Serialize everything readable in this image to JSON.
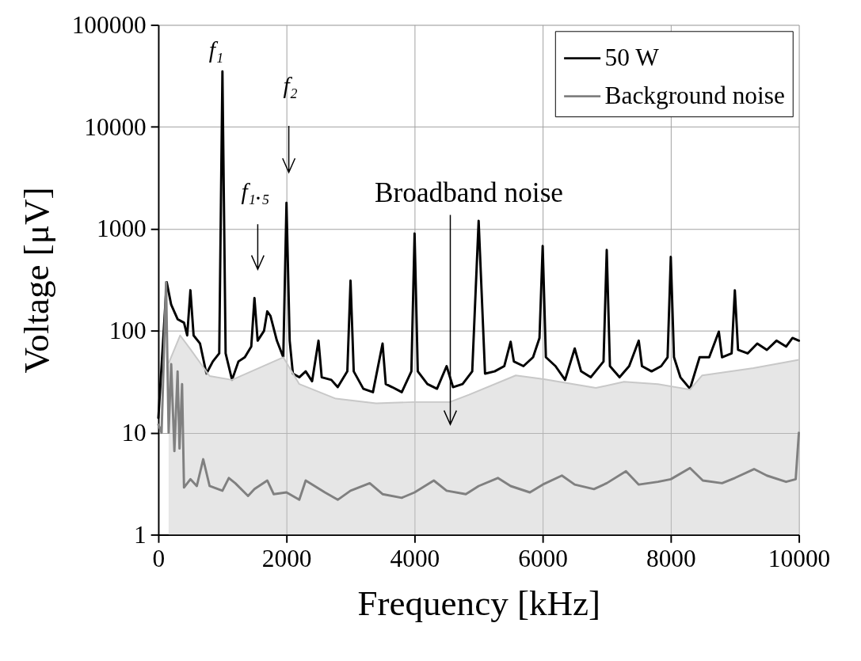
{
  "chart_data": {
    "type": "line",
    "xlabel": "Frequency [kHz]",
    "ylabel": "Voltage [μV]",
    "xlim": [
      0,
      10000
    ],
    "xticks": [
      0,
      2000,
      4000,
      6000,
      8000,
      10000
    ],
    "ylim": [
      1,
      100000
    ],
    "yticks": [
      1,
      10,
      100,
      1000,
      10000,
      100000
    ],
    "log": "y",
    "grid": true,
    "legend": "top right",
    "series": [
      {
        "name": "50 W",
        "color": "#000000",
        "x": [
          0,
          130,
          200,
          300,
          400,
          450,
          500,
          550,
          650,
          750,
          850,
          950,
          1000,
          1050,
          1150,
          1250,
          1350,
          1450,
          1500,
          1550,
          1650,
          1700,
          1750,
          1850,
          1950,
          2000,
          2050,
          2100,
          2200,
          2300,
          2400,
          2500,
          2550,
          2700,
          2800,
          2950,
          3000,
          3050,
          3200,
          3350,
          3500,
          3550,
          3650,
          3800,
          3950,
          4000,
          4050,
          4200,
          4350,
          4500,
          4600,
          4750,
          4900,
          5000,
          5100,
          5250,
          5400,
          5500,
          5550,
          5700,
          5850,
          5950,
          6000,
          6050,
          6200,
          6350,
          6500,
          6600,
          6750,
          6950,
          7000,
          7050,
          7200,
          7350,
          7500,
          7550,
          7700,
          7850,
          7950,
          8000,
          8050,
          8150,
          8300,
          8450,
          8600,
          8750,
          8800,
          8950,
          9000,
          9050,
          9200,
          9350,
          9500,
          9650,
          9800,
          9900,
          10000
        ],
        "values": [
          14,
          300,
          180,
          130,
          120,
          90,
          250,
          90,
          75,
          38,
          50,
          60,
          35000,
          60,
          33,
          50,
          55,
          70,
          210,
          80,
          100,
          155,
          140,
          80,
          55,
          1800,
          80,
          38,
          35,
          40,
          32,
          80,
          35,
          33,
          28,
          40,
          310,
          40,
          27,
          25,
          75,
          30,
          28,
          25,
          40,
          900,
          40,
          30,
          27,
          45,
          28,
          30,
          40,
          1200,
          38,
          40,
          45,
          78,
          50,
          45,
          55,
          85,
          680,
          55,
          45,
          33,
          67,
          40,
          35,
          50,
          620,
          45,
          35,
          45,
          80,
          45,
          40,
          45,
          55,
          530,
          55,
          35,
          27,
          55,
          55,
          98,
          55,
          60,
          250,
          65,
          60,
          75,
          65,
          80,
          70,
          85,
          80
        ]
      },
      {
        "name": "Background noise",
        "color": "#808080",
        "x": [
          0,
          50,
          120,
          160,
          200,
          250,
          300,
          330,
          370,
          400,
          500,
          600,
          700,
          800,
          1000,
          1100,
          1200,
          1400,
          1500,
          1700,
          1800,
          2000,
          2200,
          2300,
          2600,
          2800,
          3000,
          3300,
          3500,
          3800,
          4000,
          4300,
          4500,
          4800,
          5000,
          5300,
          5500,
          5800,
          6000,
          6300,
          6500,
          6800,
          7000,
          7300,
          7500,
          7800,
          8000,
          8300,
          8500,
          8800,
          9000,
          9300,
          9500,
          9800,
          9950,
          10000
        ],
        "values": [
          12,
          10,
          300,
          10,
          47,
          6.6,
          40,
          7,
          30,
          2.9,
          3.5,
          3,
          5.5,
          3,
          2.7,
          3.6,
          3.2,
          2.4,
          2.8,
          3.4,
          2.5,
          2.6,
          2.2,
          3.4,
          2.6,
          2.2,
          2.7,
          3.2,
          2.5,
          2.3,
          2.6,
          3.4,
          2.7,
          2.5,
          3,
          3.6,
          3,
          2.6,
          3.1,
          3.8,
          3.1,
          2.8,
          3.2,
          4.2,
          3.1,
          3.3,
          3.5,
          4.5,
          3.4,
          3.2,
          3.6,
          4.4,
          3.8,
          3.3,
          3.5,
          10
        ],
        "type": "line"
      },
      {
        "type": "area",
        "color": "#c8c8c8",
        "x": [
          160,
          340,
          500,
          800,
          1150,
          1950,
          2200,
          2770,
          3400,
          3980,
          4550,
          4850,
          5580,
          6020,
          6830,
          7270,
          7800,
          8300,
          8490,
          9290,
          10000
        ],
        "values": [
          48,
          90,
          66,
          36,
          33,
          55,
          30,
          21.6,
          19.4,
          20,
          20,
          23.6,
          36.5,
          33.5,
          27.5,
          31.6,
          30,
          26.5,
          36.5,
          43,
          52
        ]
      }
    ],
    "annotations": [
      {
        "text": "f₁",
        "x": 1000,
        "y": 35000
      },
      "f₂",
      "f₁.₅",
      "Broadband noise"
    ]
  }
}
